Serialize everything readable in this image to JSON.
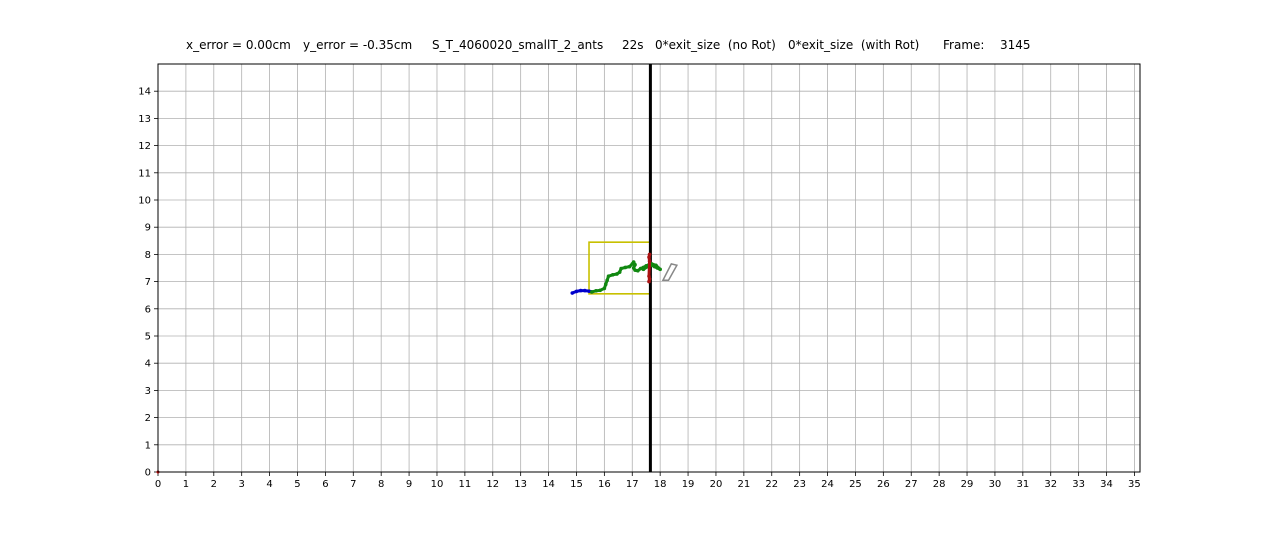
{
  "chart_data": {
    "type": "scatter",
    "title_parts": {
      "x_error": "x_error = 0.00cm",
      "y_error": "y_error = -0.35cm",
      "name": "S_T_4060020_smallT_2_ants",
      "time": "22s",
      "no_rot": "0*exit_size  (no Rot)",
      "with_rot": "0*exit_size  (with Rot)",
      "frame_label": "Frame:",
      "frame_value": "3145"
    },
    "xlim": [
      0,
      35.2
    ],
    "ylim": [
      0,
      15
    ],
    "xticks": [
      0,
      1,
      2,
      3,
      4,
      5,
      6,
      7,
      8,
      9,
      10,
      11,
      12,
      13,
      14,
      15,
      16,
      17,
      18,
      19,
      20,
      21,
      22,
      23,
      24,
      25,
      26,
      27,
      28,
      29,
      30,
      31,
      32,
      33,
      34,
      35
    ],
    "yticks": [
      0,
      1,
      2,
      3,
      4,
      5,
      6,
      7,
      8,
      9,
      10,
      11,
      12,
      13,
      14
    ],
    "grid": true,
    "wall": {
      "x": 17.65,
      "y": [
        0,
        15
      ],
      "color": "#000000"
    },
    "exit_box": {
      "x0": 15.45,
      "x1": 17.65,
      "y0": 6.55,
      "y1": 8.45,
      "color": "#c8c000"
    },
    "series": [
      {
        "color": "#0000cc",
        "points": [
          [
            14.85,
            6.58
          ],
          [
            15.0,
            6.64
          ],
          [
            15.15,
            6.67
          ],
          [
            15.3,
            6.67
          ],
          [
            15.45,
            6.65
          ],
          [
            15.55,
            6.62
          ]
        ]
      },
      {
        "color": "#118811",
        "points": [
          [
            15.55,
            6.62
          ],
          [
            15.7,
            6.66
          ],
          [
            15.85,
            6.68
          ],
          [
            16.0,
            6.75
          ],
          [
            16.05,
            6.9
          ],
          [
            16.1,
            7.05
          ],
          [
            16.15,
            7.2
          ],
          [
            16.3,
            7.25
          ],
          [
            16.45,
            7.28
          ],
          [
            16.55,
            7.35
          ],
          [
            16.6,
            7.48
          ],
          [
            16.75,
            7.52
          ],
          [
            16.9,
            7.55
          ],
          [
            17.0,
            7.65
          ],
          [
            17.05,
            7.72
          ],
          [
            17.1,
            7.62
          ],
          [
            17.05,
            7.5
          ],
          [
            17.1,
            7.42
          ],
          [
            17.2,
            7.4
          ],
          [
            17.3,
            7.48
          ],
          [
            17.4,
            7.52
          ],
          [
            17.5,
            7.58
          ],
          [
            17.6,
            7.62
          ],
          [
            17.7,
            7.6
          ],
          [
            17.8,
            7.55
          ],
          [
            17.9,
            7.5
          ],
          [
            18.0,
            7.45
          ],
          [
            17.85,
            7.6
          ],
          [
            17.7,
            7.65
          ],
          [
            17.55,
            7.55
          ],
          [
            17.4,
            7.45
          ]
        ]
      },
      {
        "color": "#aa1111",
        "points": [
          [
            17.62,
            8.0
          ],
          [
            17.6,
            7.9
          ],
          [
            17.62,
            7.75
          ],
          [
            17.6,
            7.2
          ],
          [
            17.62,
            7.1
          ],
          [
            17.6,
            7.0
          ]
        ]
      }
    ],
    "shape": {
      "color": "#888888",
      "corners": [
        [
          18.1,
          7.05
        ],
        [
          18.3,
          7.05
        ],
        [
          18.6,
          7.6
        ],
        [
          18.4,
          7.65
        ]
      ]
    }
  }
}
